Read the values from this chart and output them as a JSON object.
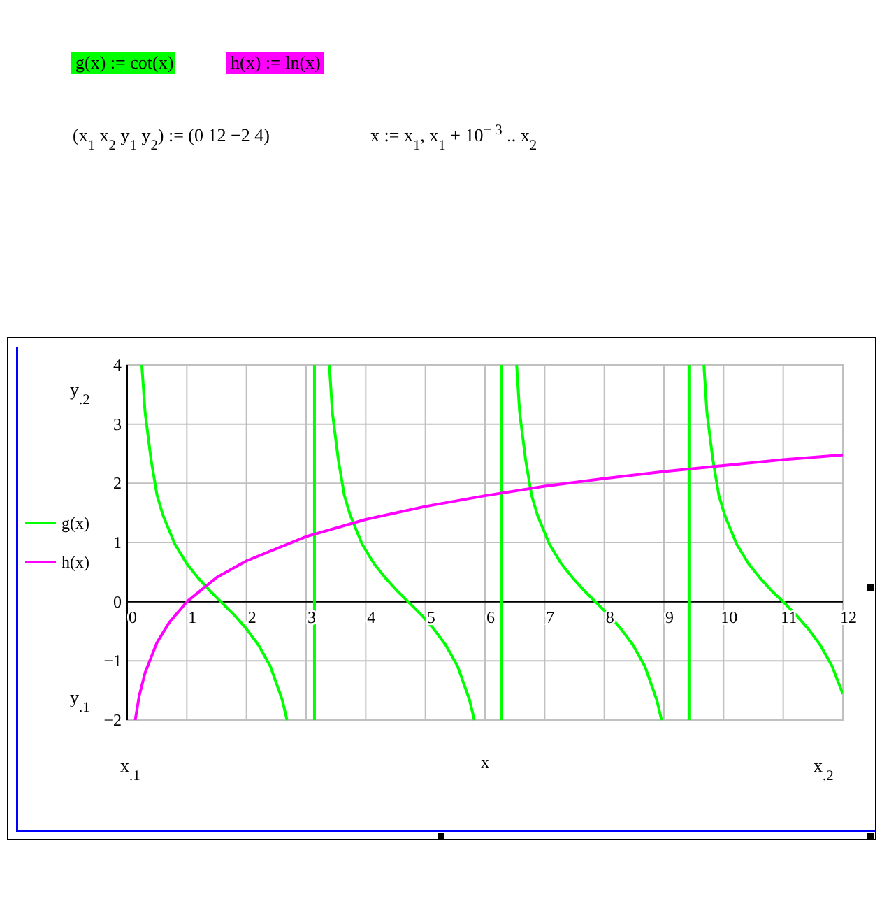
{
  "chart_data": {
    "type": "line",
    "xlabel": "x",
    "annotations": [
      "g(x) := cot(x)",
      "h(x) := ln(x)",
      "(x$_{1}$  x$_{2}$  y$_{1}$  y$_{2}$) := (0  12  −2  4)",
      "x := x$_{1}$, x$_{1}$ + 10$^{− 3}$ .. x$_{2}$",
      "y$_{.2}$",
      "y$_{.1}$",
      "x$_{.1}$",
      "x$_{.2}$"
    ],
    "xlim": [
      0,
      12
    ],
    "xticks": [
      0,
      1,
      2,
      3,
      4,
      5,
      6,
      7,
      8,
      9,
      10,
      11,
      12
    ],
    "ylim": [
      -2,
      4
    ],
    "yticks": [
      {
        "value": -2,
        "label": "−2"
      },
      {
        "value": -1,
        "label": "−1"
      },
      0,
      1,
      2,
      3,
      4
    ],
    "grid": true,
    "legend": "left",
    "line_style": "solid",
    "marker": "none",
    "series": [
      {
        "name": "g(x)",
        "color": "#00ff00",
        "x": [
          0.245,
          0.3,
          0.4,
          0.5,
          0.6,
          0.8,
          1,
          1.2,
          1.4,
          1.57,
          1.8,
          2,
          2.2,
          2.4,
          2.6,
          2.68,
          2.9,
          3.14,
          3.14,
          3.3,
          3.39,
          3.44,
          3.54,
          3.64,
          3.74,
          3.94,
          4.14,
          4.34,
          4.54,
          4.71,
          4.94,
          5.14,
          5.34,
          5.54,
          5.74,
          5.82,
          6.0,
          6.28,
          6.28,
          6.4,
          6.53,
          6.58,
          6.68,
          6.78,
          6.88,
          7.08,
          7.28,
          7.48,
          7.68,
          7.85,
          8.08,
          8.28,
          8.48,
          8.68,
          8.88,
          8.96,
          9.2,
          9.42,
          9.42,
          9.55,
          9.67,
          9.72,
          9.82,
          9.92,
          10.02,
          10.22,
          10.42,
          10.62,
          10.82,
          11,
          11.22,
          11.42,
          11.62,
          11.82,
          12
        ],
        "values": [
          4,
          3.2,
          2.4,
          1.8,
          1.46,
          0.97,
          0.64,
          0.39,
          0.17,
          0,
          -0.23,
          -0.46,
          -0.73,
          -1.09,
          -1.66,
          -2,
          null,
          -2,
          4,
          null,
          4,
          3.2,
          2.4,
          1.8,
          1.46,
          0.97,
          0.64,
          0.39,
          0.17,
          0,
          -0.23,
          -0.46,
          -0.73,
          -1.09,
          -1.66,
          -2,
          null,
          -2,
          4,
          null,
          4,
          3.2,
          2.4,
          1.8,
          1.46,
          0.97,
          0.64,
          0.39,
          0.17,
          0,
          -0.23,
          -0.46,
          -0.73,
          -1.09,
          -1.66,
          -2,
          null,
          -2,
          4,
          null,
          4,
          3.2,
          2.4,
          1.8,
          1.46,
          0.97,
          0.64,
          0.39,
          0.17,
          0,
          -0.23,
          -0.46,
          -0.73,
          -1.09,
          -1.56
        ]
      },
      {
        "name": "h(x)",
        "color": "#ff00ff",
        "x": [
          0.135,
          0.2,
          0.3,
          0.5,
          0.7,
          1,
          1.5,
          2,
          3,
          4,
          5,
          6,
          7,
          8,
          9,
          10,
          11,
          12
        ],
        "values": [
          -2,
          -1.6,
          -1.2,
          -0.69,
          -0.36,
          0,
          0.41,
          0.69,
          1.1,
          1.39,
          1.61,
          1.79,
          1.95,
          2.08,
          2.2,
          2.3,
          2.4,
          2.48
        ]
      }
    ]
  }
}
